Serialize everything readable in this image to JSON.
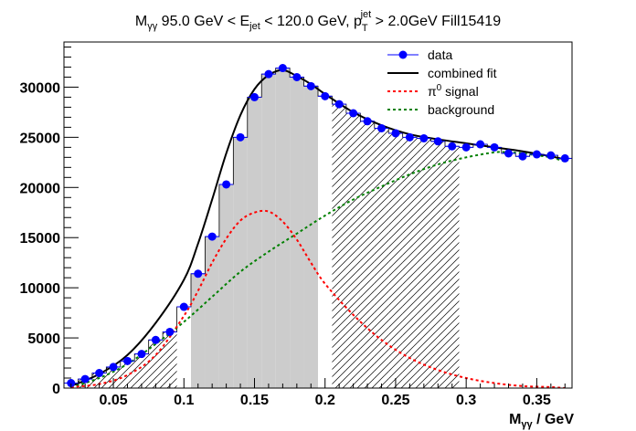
{
  "chart_data": {
    "type": "histogram-fit",
    "title": {
      "m": "M",
      "m_sub": "γγ",
      "mid": " 95.0 GeV < E",
      "e_sub": "jet",
      "mid2": " < 120.0 GeV, p",
      "p_sub": "T",
      "p_sup": "jet",
      "end": " > 2.0GeV Fill15419"
    },
    "xlabel": {
      "m": "M",
      "m_sub": "γγ",
      "unit": " / GeV"
    },
    "ylabel": "",
    "xlim": [
      0.015,
      0.375
    ],
    "ylim": [
      0,
      34500
    ],
    "x_ticks": [
      "0.05",
      "0.1",
      "0.15",
      "0.2",
      "0.25",
      "0.3",
      "0.35"
    ],
    "y_ticks": [
      "0",
      "5000",
      "10000",
      "15000",
      "20000",
      "25000",
      "30000"
    ],
    "bin_width": 0.01,
    "signal_region": [
      0.1,
      0.2
    ],
    "background_regions": [
      [
        0.02,
        0.1
      ],
      [
        0.2,
        0.3
      ]
    ],
    "series": [
      {
        "name": "data",
        "color": "#0000ff",
        "x": [
          0.02,
          0.03,
          0.04,
          0.05,
          0.06,
          0.07,
          0.08,
          0.09,
          0.1,
          0.11,
          0.12,
          0.13,
          0.14,
          0.15,
          0.16,
          0.17,
          0.18,
          0.19,
          0.2,
          0.21,
          0.22,
          0.23,
          0.24,
          0.25,
          0.26,
          0.27,
          0.28,
          0.29,
          0.3,
          0.31,
          0.32,
          0.33,
          0.34,
          0.35,
          0.36,
          0.37
        ],
        "values": [
          500,
          900,
          1500,
          2100,
          2700,
          3400,
          4800,
          5600,
          8100,
          11400,
          15100,
          20300,
          25000,
          29000,
          31300,
          31900,
          31000,
          30100,
          29100,
          28300,
          27400,
          26600,
          25900,
          25400,
          25000,
          24900,
          24600,
          24100,
          24000,
          24300,
          24000,
          23400,
          23100,
          23300,
          23200,
          22900
        ]
      },
      {
        "name": "combined fit",
        "color": "#000000",
        "x": [
          0.02,
          0.04,
          0.06,
          0.08,
          0.1,
          0.11,
          0.12,
          0.13,
          0.14,
          0.15,
          0.16,
          0.17,
          0.18,
          0.19,
          0.2,
          0.22,
          0.24,
          0.26,
          0.28,
          0.3,
          0.32,
          0.34,
          0.36,
          0.37
        ],
        "values": [
          200,
          1400,
          3300,
          6500,
          10800,
          14400,
          18800,
          23400,
          27200,
          29800,
          31200,
          31700,
          31100,
          30300,
          29300,
          27500,
          26200,
          25300,
          24800,
          24400,
          24000,
          23600,
          23100,
          22800
        ]
      },
      {
        "name": "signal",
        "color": "#ff0000",
        "x": [
          0.02,
          0.04,
          0.06,
          0.08,
          0.1,
          0.11,
          0.12,
          0.13,
          0.14,
          0.15,
          0.16,
          0.17,
          0.18,
          0.19,
          0.2,
          0.22,
          0.24,
          0.26,
          0.28,
          0.3,
          0.32,
          0.34,
          0.36,
          0.37
        ],
        "values": [
          100,
          400,
          1300,
          3300,
          7200,
          9700,
          12500,
          14900,
          16700,
          17500,
          17600,
          16600,
          14800,
          12500,
          10400,
          7300,
          4800,
          3000,
          1800,
          1000,
          500,
          200,
          100,
          0
        ]
      },
      {
        "name": "background",
        "color": "#008000",
        "x": [
          0.02,
          0.04,
          0.06,
          0.08,
          0.1,
          0.12,
          0.14,
          0.16,
          0.18,
          0.2,
          0.22,
          0.24,
          0.26,
          0.28,
          0.3,
          0.32,
          0.33,
          0.34,
          0.35,
          0.36,
          0.37
        ],
        "values": [
          100,
          1000,
          2400,
          4400,
          6600,
          9100,
          11600,
          13600,
          15400,
          17200,
          18800,
          20100,
          21300,
          22300,
          23000,
          23500,
          23500,
          23400,
          23200,
          23000,
          22600
        ]
      }
    ],
    "legend": {
      "position": "top-right",
      "entries": [
        {
          "label": "data",
          "style": "marker-line",
          "color": "#0000ff"
        },
        {
          "label": "combined fit",
          "style": "line",
          "color": "#000000"
        },
        {
          "label": "π",
          "sup": "0",
          "rest": " signal",
          "style": "dashed",
          "color": "#ff0000"
        },
        {
          "label": "background",
          "style": "dashed",
          "color": "#008000"
        }
      ]
    }
  }
}
